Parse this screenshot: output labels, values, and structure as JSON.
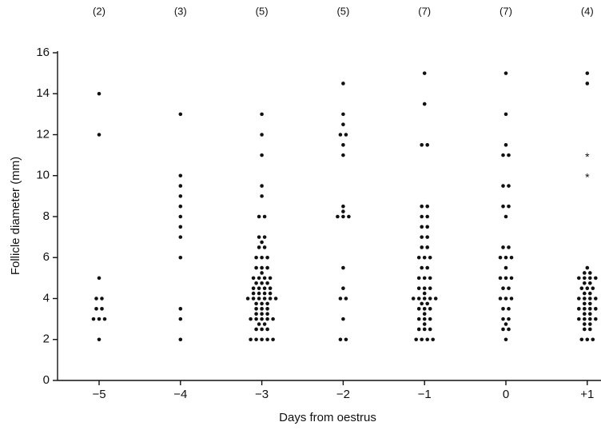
{
  "chart_data": {
    "type": "dotstrip",
    "x_label": "Days from oestrus",
    "y_label": "Follicle diameter (mm)",
    "categories": [
      "−5",
      "−4",
      "−3",
      "−2",
      "−1",
      "0",
      "+1"
    ],
    "group_labels": [
      "(2)",
      "(3)",
      "(5)",
      "(5)",
      "(7)",
      "(7)",
      "(4)"
    ],
    "ylim": [
      0,
      16
    ],
    "yticks": [
      0,
      2,
      4,
      6,
      8,
      10,
      12,
      14,
      16
    ],
    "series": [
      {
        "marker": "dot",
        "color": "#111111",
        "values": [
          [
            14,
            12,
            5,
            4,
            4,
            3.5,
            3.5,
            3,
            3,
            3,
            2
          ],
          [
            13,
            10,
            9.5,
            9,
            8.5,
            8,
            7.5,
            7,
            6,
            3.5,
            3,
            2
          ],
          [
            13,
            12,
            11,
            9.5,
            9,
            8,
            8,
            7,
            7,
            6.75,
            6.5,
            6.5,
            6,
            6,
            6,
            5.5,
            5.5,
            5.5,
            5.25,
            5,
            5,
            5,
            5,
            4.75,
            4.75,
            4.75,
            4.5,
            4.5,
            4.5,
            4.5,
            4.25,
            4.25,
            4.25,
            4.25,
            4,
            4,
            4,
            4,
            4,
            4,
            3.75,
            3.75,
            3.75,
            3.5,
            3.5,
            3.5,
            3.25,
            3.25,
            3.25,
            3,
            3,
            3,
            3,
            3,
            2.75,
            2.75,
            2.5,
            2.5,
            2.5,
            2,
            2,
            2,
            2,
            2
          ],
          [
            14.5,
            13,
            12.5,
            12,
            12,
            11.5,
            11,
            8.5,
            8.25,
            8,
            8,
            8,
            5.5,
            4.5,
            4,
            4,
            3,
            2,
            2
          ],
          [
            15,
            13.5,
            11.5,
            11.5,
            8.5,
            8.5,
            8,
            8,
            7.5,
            7.5,
            7,
            7,
            6.5,
            6.5,
            6,
            6,
            6,
            5.5,
            5.5,
            5,
            5,
            5,
            4.5,
            4.5,
            4.5,
            4.25,
            4,
            4,
            4,
            4,
            4,
            3.75,
            3.75,
            3.5,
            3.5,
            3.5,
            3.25,
            3,
            3,
            3,
            2.75,
            2.5,
            2.5,
            2.5,
            2,
            2,
            2,
            2
          ],
          [
            15,
            13,
            11.5,
            11,
            11,
            9.5,
            9.5,
            8.5,
            8.5,
            8,
            6.5,
            6.5,
            6,
            6,
            6,
            5.5,
            5,
            5,
            5,
            4.5,
            4.5,
            4,
            4,
            4,
            3.5,
            3.5,
            3,
            3,
            2.75,
            2.5,
            2.5,
            2
          ],
          [
            15,
            14.5,
            5.5,
            5.25,
            5.25,
            5,
            5,
            5,
            5,
            4.75,
            4.75,
            4.5,
            4.5,
            4.5,
            4.25,
            4.25,
            4,
            4,
            4,
            4,
            3.75,
            3.75,
            3.5,
            3.5,
            3.5,
            3.5,
            3.25,
            3.25,
            3,
            3,
            3,
            3,
            2.75,
            2.75,
            2.5,
            2.5,
            2,
            2,
            2
          ]
        ]
      },
      {
        "marker": "asterisk",
        "color": "#111111",
        "values": [
          [],
          [],
          [],
          [],
          [],
          [],
          [
            11,
            10
          ]
        ]
      }
    ]
  }
}
